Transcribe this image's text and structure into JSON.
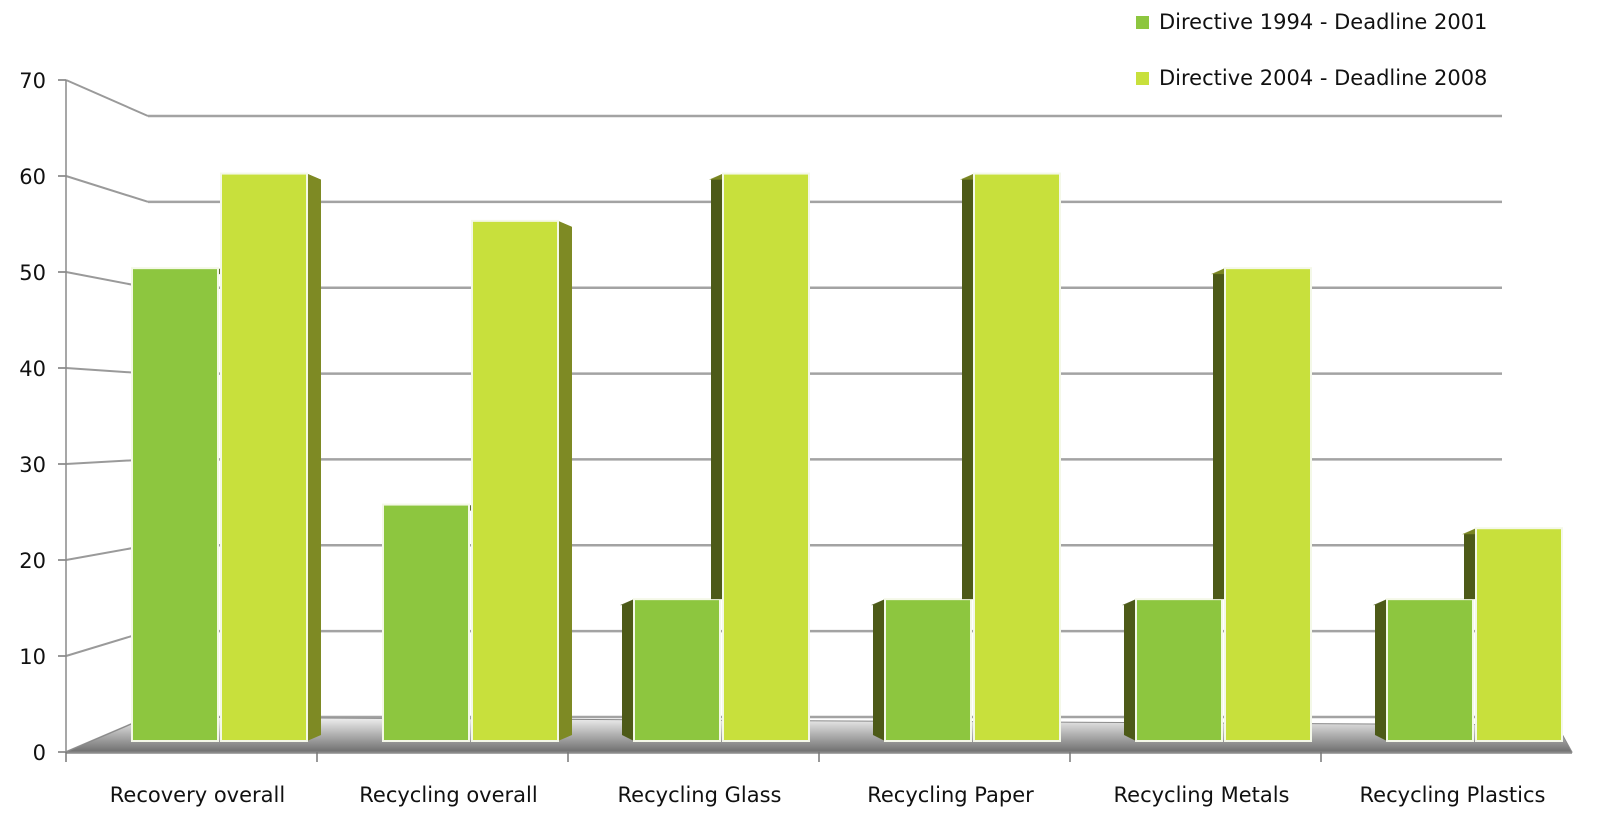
{
  "chart_data": {
    "type": "bar",
    "title": "",
    "xlabel": "",
    "ylabel": "",
    "categories": [
      "Recovery overall",
      "Recycling overall",
      "Recycling Glass",
      "Recycling Paper",
      "Recycling Metals",
      "Recycling Plastics"
    ],
    "series": [
      {
        "name": "Directive 1994 - Deadline 2001",
        "values": [
          50,
          25,
          15,
          15,
          15,
          15
        ],
        "color": "#8dc63f"
      },
      {
        "name": "Directive 2004 - Deadline 2008",
        "values": [
          60,
          55,
          60,
          60,
          50,
          22.5
        ],
        "color": "#c8e03c"
      }
    ],
    "ylim": [
      0,
      70
    ],
    "yticks": [
      0,
      10,
      20,
      30,
      40,
      50,
      60,
      70
    ],
    "grid": true,
    "legend": "top-right",
    "style": "3d-column"
  }
}
